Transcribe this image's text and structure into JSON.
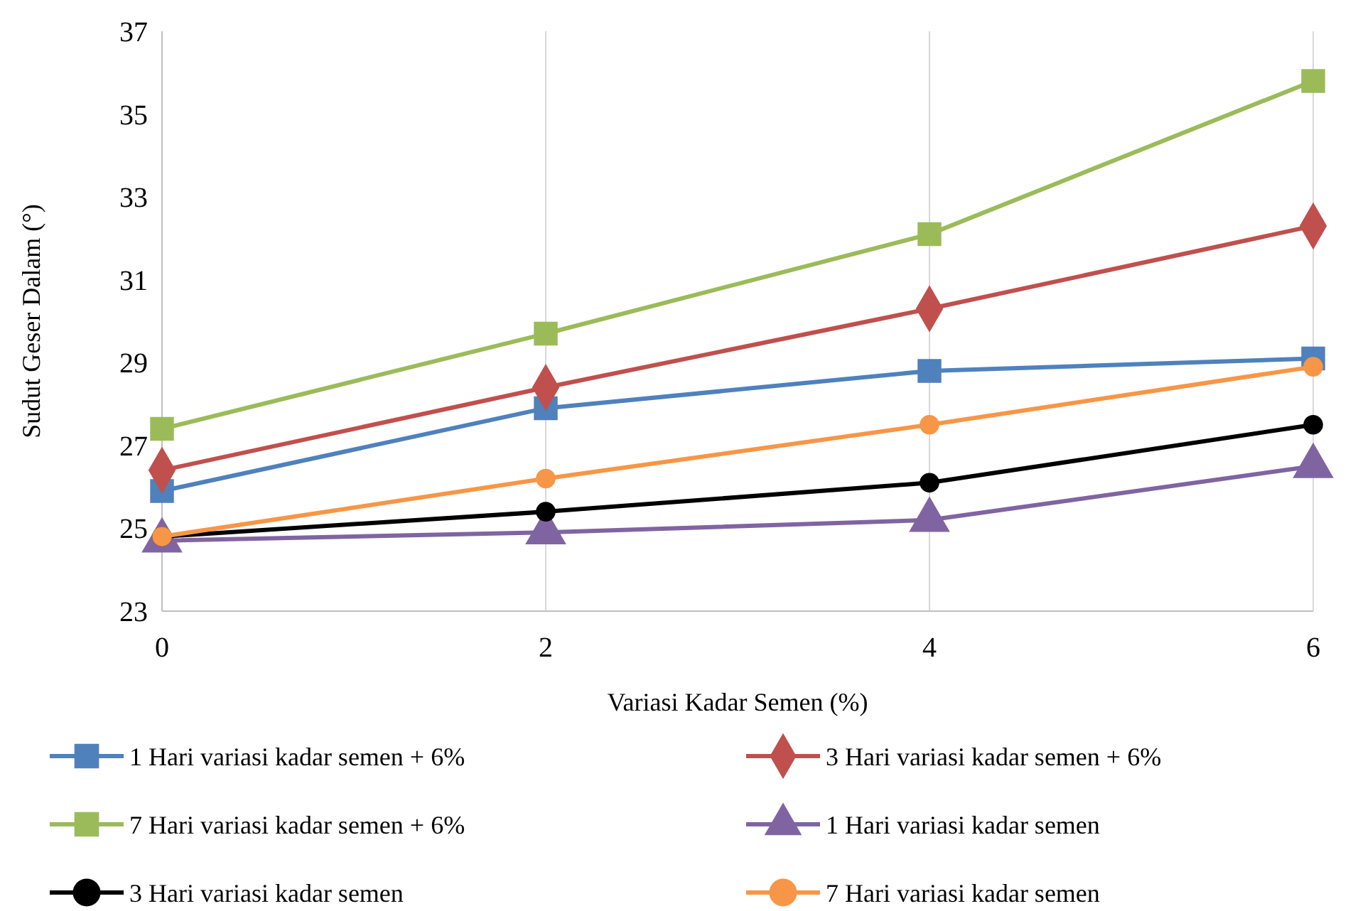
{
  "chart_data": {
    "type": "line",
    "xlabel": "Variasi Kadar Semen (%)",
    "ylabel": "Sudut Geser Dalam (°)",
    "x": [
      0,
      2,
      4,
      6
    ],
    "xlim": [
      0,
      6
    ],
    "xticks": [
      0,
      2,
      4,
      6
    ],
    "ylim": [
      23,
      37
    ],
    "yticks": [
      23,
      25,
      27,
      29,
      31,
      33,
      35,
      37
    ],
    "grid": "x",
    "legend": "bottom",
    "series": [
      {
        "name": "1 Hari variasi kadar semen + 6%",
        "color": "#4f81bd",
        "marker": "square",
        "values": [
          25.9,
          27.9,
          28.8,
          29.1
        ]
      },
      {
        "name": "3 Hari variasi kadar semen + 6%",
        "color": "#c0504d",
        "marker": "diamond",
        "values": [
          26.4,
          28.4,
          30.3,
          32.3
        ]
      },
      {
        "name": "7 Hari variasi kadar semen + 6%",
        "color": "#9bbb59",
        "marker": "square",
        "values": [
          27.4,
          29.7,
          32.1,
          35.8
        ]
      },
      {
        "name": "1 Hari variasi kadar semen",
        "color": "#8064a2",
        "marker": "triangle",
        "values": [
          24.7,
          24.9,
          25.2,
          26.5
        ]
      },
      {
        "name": "3 Hari variasi kadar semen",
        "color": "#000000",
        "marker": "circle",
        "values": [
          24.8,
          25.4,
          26.1,
          27.5
        ]
      },
      {
        "name": "7 Hari variasi kadar semen",
        "color": "#f79646",
        "marker": "circle",
        "values": [
          24.8,
          26.2,
          27.5,
          28.9
        ]
      }
    ]
  }
}
